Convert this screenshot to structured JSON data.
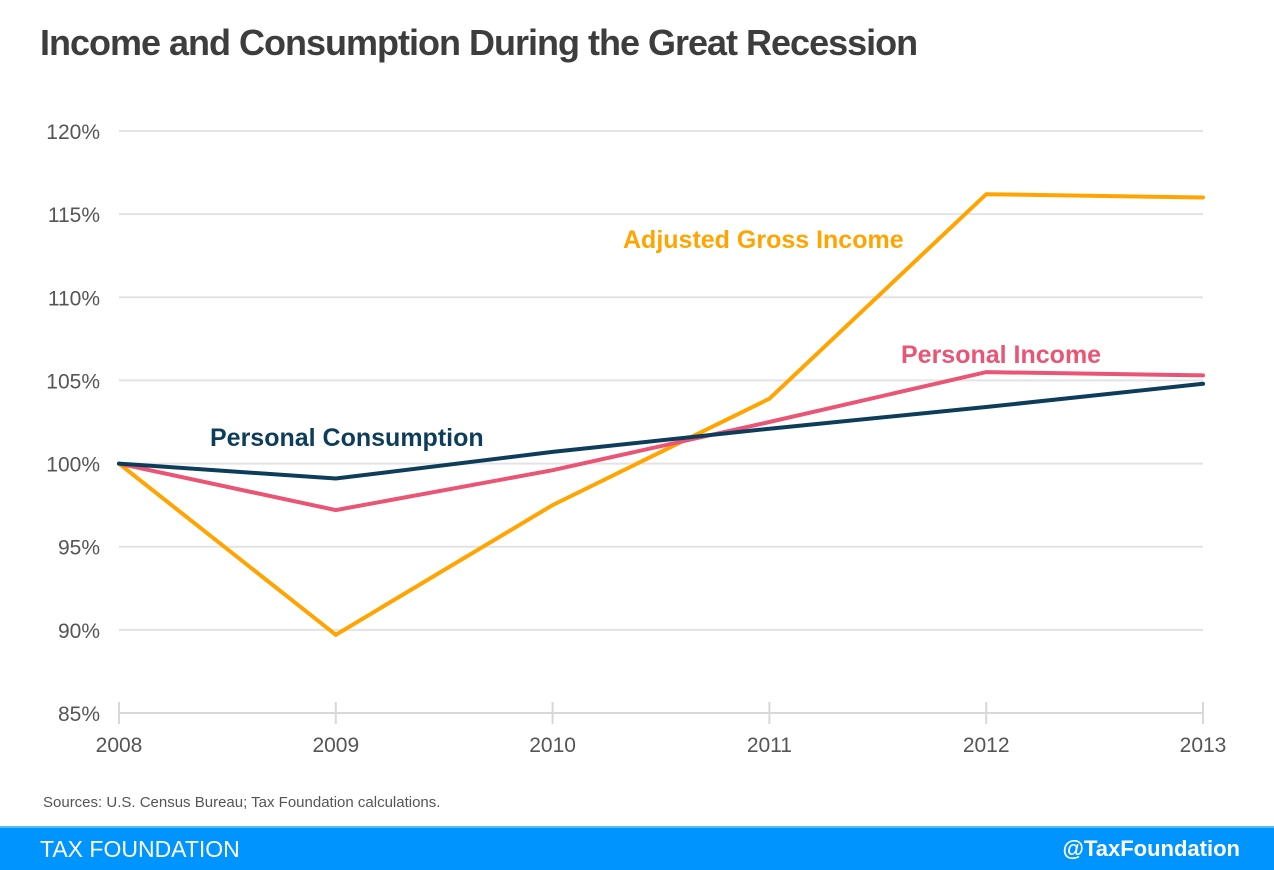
{
  "header": {
    "title": "Income and Consumption During the Great Recession"
  },
  "footer": {
    "source": "Sources: U.S. Census Bureau; Tax Foundation calculations.",
    "brand": "TAX FOUNDATION",
    "handle": "@TaxFoundation",
    "bar_color": "#0094ff"
  },
  "chart_data": {
    "type": "line",
    "title": "Income and Consumption During the Great Recession",
    "xlabel": "",
    "ylabel": "",
    "x": [
      "2008",
      "2009",
      "2010",
      "2011",
      "2012",
      "2013"
    ],
    "ylim": [
      85,
      120
    ],
    "yticks": [
      85,
      90,
      95,
      100,
      105,
      110,
      115,
      120
    ],
    "ytick_labels": [
      "85%",
      "90%",
      "95%",
      "100%",
      "105%",
      "110%",
      "115%",
      "120%"
    ],
    "grid": true,
    "legend": "inline-labels",
    "series": [
      {
        "name": "Adjusted Gross Income",
        "color": "#ffa400",
        "values": [
          100,
          89.7,
          97.5,
          103.9,
          116.2,
          116.0
        ]
      },
      {
        "name": "Personal Income",
        "color": "#ea5475",
        "values": [
          100,
          97.2,
          99.6,
          102.5,
          105.5,
          105.3
        ]
      },
      {
        "name": "Personal Consumption",
        "color": "#0d3d5a",
        "values": [
          100,
          99.1,
          100.7,
          102.1,
          103.4,
          104.8
        ]
      }
    ]
  }
}
